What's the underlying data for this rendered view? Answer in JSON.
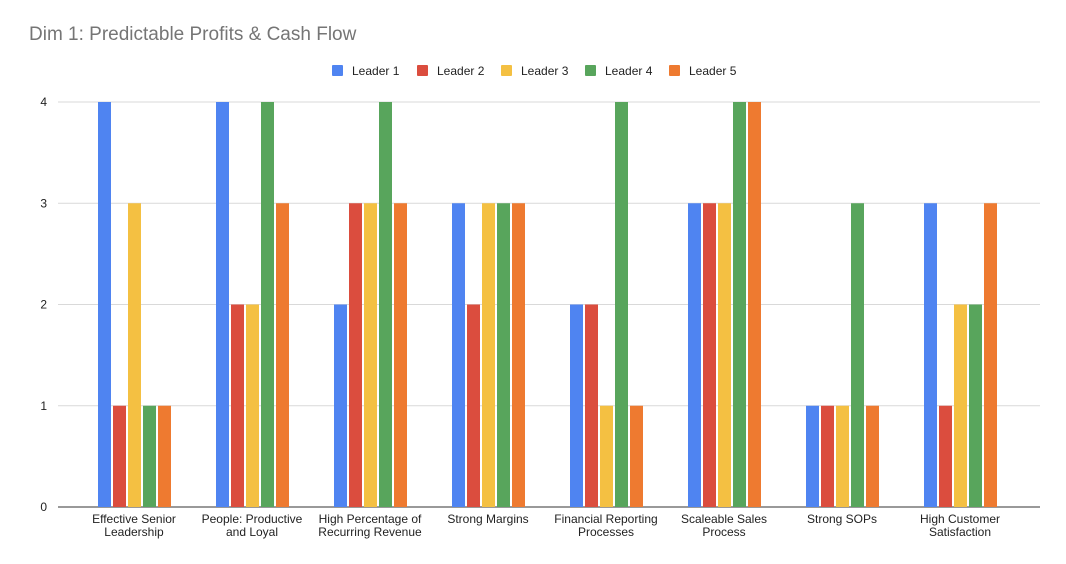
{
  "chart_data": {
    "type": "bar",
    "title": "Dim 1: Predictable Profits & Cash Flow",
    "xlabel": "",
    "ylabel": "",
    "ylim": [
      0,
      4
    ],
    "yticks": [
      0,
      1,
      2,
      3,
      4
    ],
    "grid": true,
    "legend_position": "top",
    "categories": [
      [
        "Effective Senior",
        "Leadership"
      ],
      [
        "People: Productive",
        "and Loyal"
      ],
      [
        "High Percentage of",
        "Recurring Revenue"
      ],
      [
        "Strong Margins"
      ],
      [
        "Financial Reporting",
        "Processes"
      ],
      [
        "Scaleable Sales",
        "Process"
      ],
      [
        "Strong SOPs"
      ],
      [
        "High Customer",
        "Satisfaction"
      ]
    ],
    "series": [
      {
        "name": "Leader 1",
        "color": "#4F84F1",
        "values": [
          4,
          4,
          2,
          3,
          2,
          3,
          1,
          3
        ]
      },
      {
        "name": "Leader 2",
        "color": "#DB4D3E",
        "values": [
          1,
          2,
          3,
          2,
          2,
          3,
          1,
          1
        ]
      },
      {
        "name": "Leader 3",
        "color": "#F4C042",
        "values": [
          3,
          2,
          3,
          3,
          1,
          3,
          1,
          2
        ]
      },
      {
        "name": "Leader 4",
        "color": "#58A55C",
        "values": [
          1,
          4,
          4,
          3,
          4,
          4,
          3,
          2
        ]
      },
      {
        "name": "Leader 5",
        "color": "#EE7A30",
        "values": [
          1,
          3,
          3,
          3,
          1,
          4,
          1,
          3
        ]
      }
    ]
  }
}
